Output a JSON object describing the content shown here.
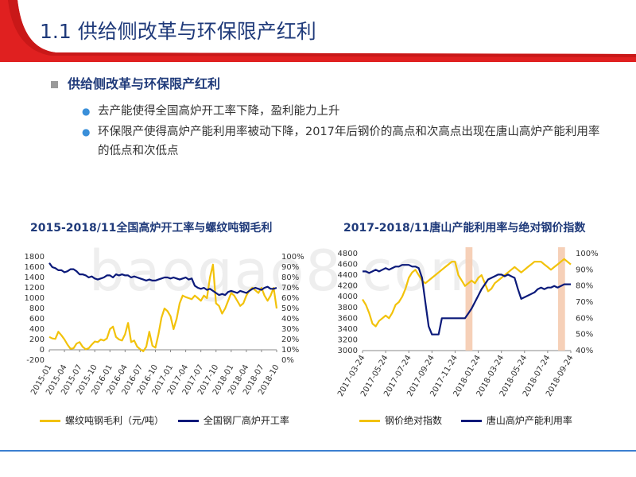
{
  "slide": {
    "title": "1.1 供给侧改革与环保限产红利",
    "section_heading": "供给侧改革与环保限产红利",
    "bullets": [
      "去产能使得全国高炉开工率下降，盈利能力上升",
      "环保限产使得高炉产能利用率被动下降，2017年后钢价的高点和次高点出现在唐山高炉产能利用率的低点和次低点"
    ],
    "watermark": "baogao8.com",
    "colors": {
      "title": "#1f3a7a",
      "accent_red": "#e02020",
      "navy": "#0b1a7a",
      "gold": "#f2c20a",
      "shade": "#f5cbb0"
    }
  },
  "chart_data": [
    {
      "type": "line",
      "title": "2015-2018/11全国高炉开工率与螺纹吨钢毛利",
      "x_tick_labels": [
        "2015-01",
        "2015-04",
        "2015-07",
        "2015-10",
        "2016-01",
        "2016-04",
        "2016-07",
        "2016-10",
        "2017-01",
        "2017-04",
        "2017-07",
        "2017-10",
        "2018-01",
        "2018-04",
        "2018-07",
        "2018-10"
      ],
      "y_left": {
        "ticks": [
          "1800",
          "1600",
          "1400",
          "1200",
          "1000",
          "800",
          "600",
          "400",
          "200",
          "0",
          "-200"
        ],
        "range": [
          -200,
          1800
        ]
      },
      "y_right": {
        "ticks": [
          "100%",
          "90%",
          "80%",
          "70%",
          "60%",
          "50%",
          "40%",
          "30%",
          "20%",
          "10%",
          "0%"
        ],
        "range": [
          0,
          100
        ]
      },
      "series": [
        {
          "name": "螺纹吨钢毛利（元/吨）",
          "axis": "left",
          "color": "#f2c20a",
          "values": [
            250,
            220,
            210,
            350,
            280,
            200,
            100,
            20,
            30,
            120,
            150,
            60,
            10,
            30,
            100,
            160,
            150,
            200,
            180,
            220,
            400,
            450,
            250,
            200,
            180,
            300,
            520,
            150,
            180,
            60,
            10,
            -30,
            60,
            350,
            80,
            40,
            300,
            620,
            800,
            750,
            650,
            400,
            600,
            900,
            1050,
            1020,
            1000,
            980,
            1050,
            1000,
            950,
            1050,
            1000,
            1400,
            1650,
            900,
            850,
            700,
            800,
            950,
            1100,
            1050,
            950,
            850,
            900,
            1050,
            1150,
            1200,
            1150,
            1100,
            1200,
            1050,
            950,
            1050,
            1200,
            800
          ]
        },
        {
          "name": "全国钢厂高炉开工率",
          "axis": "right",
          "color": "#0b1a7a",
          "values": [
            94,
            90,
            89,
            87,
            87,
            85,
            86,
            88,
            88,
            86,
            83,
            83,
            82,
            80,
            81,
            79,
            78,
            79,
            80,
            82,
            82,
            80,
            83,
            82,
            83,
            82,
            82,
            80,
            81,
            80,
            79,
            78,
            77,
            78,
            77,
            77,
            78,
            79,
            80,
            80,
            79,
            80,
            79,
            78,
            79,
            80,
            78,
            79,
            72,
            70,
            69,
            70,
            68,
            69,
            67,
            65,
            63,
            64,
            63,
            66,
            67,
            66,
            65,
            67,
            66,
            65,
            67,
            69,
            70,
            69,
            68,
            70,
            71,
            69,
            69,
            70
          ]
        }
      ]
    },
    {
      "type": "line",
      "title": "2017-2018/11唐山产能利用率与绝对钢价指数",
      "x_tick_labels": [
        "2017-03-24",
        "2017-05-24",
        "2017-07-24",
        "2017-09-24",
        "2017-11-24",
        "2018-01-24",
        "2018-03-24",
        "2018-05-24",
        "2018-07-24",
        "2018-09-24"
      ],
      "y_left": {
        "ticks": [
          "4800",
          "4600",
          "4400",
          "4200",
          "4000",
          "3800",
          "3600",
          "3400",
          "3200",
          "3000"
        ],
        "range": [
          3000,
          4800
        ]
      },
      "y_right": {
        "ticks": [
          "100%",
          "90%",
          "80%",
          "70%",
          "60%",
          "50%",
          "40%"
        ],
        "range": [
          40,
          100
        ]
      },
      "shaded_periods": [
        [
          "2017-11-24",
          "2018-01-24"
        ],
        [
          "2018-07-24",
          "2018-09-24"
        ]
      ],
      "series": [
        {
          "name": "钢价绝对指数",
          "axis": "left",
          "color": "#f2c20a",
          "values": [
            3950,
            3850,
            3700,
            3500,
            3450,
            3550,
            3600,
            3650,
            3600,
            3700,
            3850,
            3900,
            4000,
            4150,
            4350,
            4450,
            4500,
            4400,
            4300,
            4250,
            4300,
            4350,
            4400,
            4450,
            4500,
            4550,
            4600,
            4650,
            4650,
            4400,
            4300,
            4200,
            4250,
            4300,
            4250,
            4350,
            4400,
            4250,
            4100,
            4150,
            4250,
            4300,
            4350,
            4400,
            4450,
            4500,
            4550,
            4500,
            4450,
            4500,
            4550,
            4600,
            4650,
            4650,
            4650,
            4600,
            4550,
            4500,
            4550,
            4600,
            4650,
            4700,
            4650,
            4600
          ]
        },
        {
          "name": "唐山高炉产能利用率",
          "axis": "right",
          "color": "#0b1a7a",
          "values": [
            89,
            89,
            88,
            89,
            90,
            89,
            90,
            91,
            90,
            91,
            92,
            92,
            93,
            93,
            93,
            92,
            92,
            91,
            85,
            70,
            55,
            50,
            50,
            50,
            60,
            60,
            60,
            60,
            60,
            60,
            60,
            60,
            63,
            66,
            70,
            74,
            78,
            81,
            84,
            85,
            86,
            87,
            87,
            86,
            87,
            86,
            85,
            78,
            72,
            73,
            74,
            75,
            76,
            78,
            79,
            78,
            79,
            79,
            80,
            79,
            80,
            81,
            81,
            81
          ]
        }
      ]
    }
  ]
}
